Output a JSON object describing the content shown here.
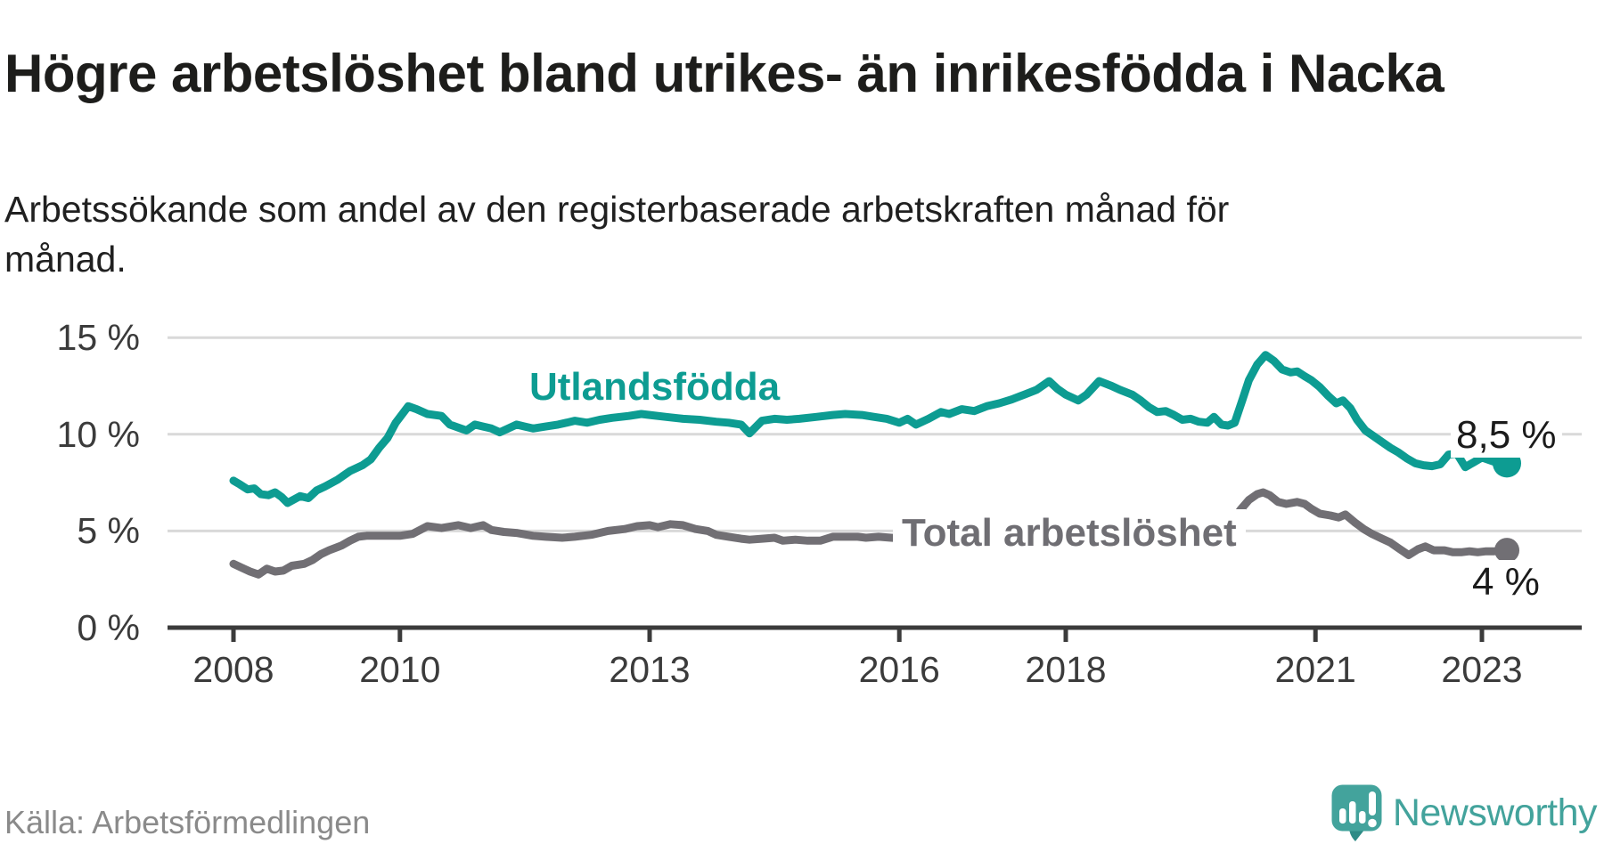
{
  "header": {
    "title": "Högre arbetslöshet bland utrikes- än inrikesfödda i Nacka",
    "subtitle": "Arbetssökande som andel av den registerbaserade arbetskraften månad för månad."
  },
  "footer": {
    "source": "Källa: Arbetsförmedlingen",
    "brand": "Newsworthy",
    "logo_icon": "newsworthy-speech-bubble-bar-chart-icon"
  },
  "colors": {
    "foreign_born_line": "#0d9c92",
    "total_line": "#716f74",
    "gridline": "#d9d9d9",
    "axis": "#3b3b3b",
    "title_text": "#1d1d1b",
    "source_text": "#8a8a8a",
    "brand_teal": "#43a39c"
  },
  "chart_data": {
    "type": "line",
    "title": "Högre arbetslöshet bland utrikes- än inrikesfödda i Nacka",
    "subtitle": "Arbetssökande som andel av den registerbaserade arbetskraften månad för månad.",
    "grid": "horizontal",
    "legend": "inline-labels",
    "xlabel": "",
    "ylabel": "",
    "x_axis": {
      "range": [
        2007.2,
        2024.2
      ],
      "ticks": [
        {
          "value": 2008,
          "label": "2008"
        },
        {
          "value": 2010,
          "label": "2010"
        },
        {
          "value": 2013,
          "label": "2013"
        },
        {
          "value": 2016,
          "label": "2016"
        },
        {
          "value": 2018,
          "label": "2018"
        },
        {
          "value": 2021,
          "label": "2021"
        },
        {
          "value": 2023,
          "label": "2023"
        }
      ]
    },
    "y_axis": {
      "unit": "%",
      "range": [
        0,
        16.5
      ],
      "ticks": [
        {
          "value": 15,
          "label": "15 %"
        },
        {
          "value": 10,
          "label": "10 %"
        },
        {
          "value": 5,
          "label": "5 %"
        },
        {
          "value": 0,
          "label": "0 %"
        }
      ]
    },
    "series": [
      {
        "name": "Utlandsfödda",
        "color": "#0d9c92",
        "end_label": "8,5 %",
        "end_value": 8.5,
        "dot_radius": 16,
        "points": [
          [
            2008.0,
            7.6
          ],
          [
            2008.08,
            7.4
          ],
          [
            2008.17,
            7.15
          ],
          [
            2008.25,
            7.2
          ],
          [
            2008.33,
            6.9
          ],
          [
            2008.42,
            6.85
          ],
          [
            2008.5,
            7.0
          ],
          [
            2008.58,
            6.75
          ],
          [
            2008.65,
            6.45
          ],
          [
            2008.8,
            6.8
          ],
          [
            2008.9,
            6.7
          ],
          [
            2009.0,
            7.1
          ],
          [
            2009.1,
            7.3
          ],
          [
            2009.25,
            7.65
          ],
          [
            2009.4,
            8.1
          ],
          [
            2009.55,
            8.4
          ],
          [
            2009.65,
            8.7
          ],
          [
            2009.75,
            9.3
          ],
          [
            2009.85,
            9.8
          ],
          [
            2009.95,
            10.6
          ],
          [
            2010.1,
            11.45
          ],
          [
            2010.2,
            11.3
          ],
          [
            2010.33,
            11.05
          ],
          [
            2010.5,
            10.95
          ],
          [
            2010.6,
            10.5
          ],
          [
            2010.7,
            10.35
          ],
          [
            2010.8,
            10.2
          ],
          [
            2010.9,
            10.5
          ],
          [
            2011.0,
            10.4
          ],
          [
            2011.1,
            10.3
          ],
          [
            2011.2,
            10.1
          ],
          [
            2011.3,
            10.3
          ],
          [
            2011.4,
            10.5
          ],
          [
            2011.5,
            10.4
          ],
          [
            2011.6,
            10.3
          ],
          [
            2011.75,
            10.4
          ],
          [
            2011.9,
            10.5
          ],
          [
            2012.0,
            10.6
          ],
          [
            2012.1,
            10.7
          ],
          [
            2012.25,
            10.6
          ],
          [
            2012.4,
            10.75
          ],
          [
            2012.55,
            10.85
          ],
          [
            2012.75,
            10.95
          ],
          [
            2012.9,
            11.05
          ],
          [
            2013.0,
            11.0
          ],
          [
            2013.2,
            10.9
          ],
          [
            2013.4,
            10.8
          ],
          [
            2013.6,
            10.75
          ],
          [
            2013.8,
            10.65
          ],
          [
            2013.95,
            10.6
          ],
          [
            2014.1,
            10.5
          ],
          [
            2014.2,
            10.05
          ],
          [
            2014.35,
            10.7
          ],
          [
            2014.5,
            10.8
          ],
          [
            2014.65,
            10.75
          ],
          [
            2014.8,
            10.8
          ],
          [
            2015.0,
            10.9
          ],
          [
            2015.2,
            11.0
          ],
          [
            2015.35,
            11.05
          ],
          [
            2015.55,
            11.0
          ],
          [
            2015.7,
            10.9
          ],
          [
            2015.85,
            10.8
          ],
          [
            2016.0,
            10.6
          ],
          [
            2016.1,
            10.8
          ],
          [
            2016.2,
            10.5
          ],
          [
            2016.35,
            10.8
          ],
          [
            2016.5,
            11.15
          ],
          [
            2016.6,
            11.05
          ],
          [
            2016.75,
            11.3
          ],
          [
            2016.9,
            11.2
          ],
          [
            2017.05,
            11.45
          ],
          [
            2017.2,
            11.6
          ],
          [
            2017.35,
            11.8
          ],
          [
            2017.5,
            12.05
          ],
          [
            2017.65,
            12.3
          ],
          [
            2017.8,
            12.75
          ],
          [
            2017.9,
            12.35
          ],
          [
            2018.0,
            12.05
          ],
          [
            2018.15,
            11.75
          ],
          [
            2018.25,
            12.05
          ],
          [
            2018.4,
            12.75
          ],
          [
            2018.55,
            12.5
          ],
          [
            2018.65,
            12.3
          ],
          [
            2018.8,
            12.05
          ],
          [
            2018.9,
            11.75
          ],
          [
            2019.0,
            11.4
          ],
          [
            2019.1,
            11.15
          ],
          [
            2019.2,
            11.2
          ],
          [
            2019.3,
            11.0
          ],
          [
            2019.4,
            10.75
          ],
          [
            2019.5,
            10.8
          ],
          [
            2019.6,
            10.65
          ],
          [
            2019.7,
            10.6
          ],
          [
            2019.78,
            10.9
          ],
          [
            2019.87,
            10.5
          ],
          [
            2019.95,
            10.45
          ],
          [
            2020.03,
            10.6
          ],
          [
            2020.12,
            11.75
          ],
          [
            2020.2,
            12.8
          ],
          [
            2020.3,
            13.6
          ],
          [
            2020.4,
            14.1
          ],
          [
            2020.5,
            13.8
          ],
          [
            2020.6,
            13.35
          ],
          [
            2020.7,
            13.2
          ],
          [
            2020.78,
            13.25
          ],
          [
            2020.87,
            13.0
          ],
          [
            2020.95,
            12.8
          ],
          [
            2021.05,
            12.45
          ],
          [
            2021.15,
            12.0
          ],
          [
            2021.25,
            11.6
          ],
          [
            2021.33,
            11.75
          ],
          [
            2021.42,
            11.35
          ],
          [
            2021.5,
            10.75
          ],
          [
            2021.6,
            10.2
          ],
          [
            2021.7,
            9.9
          ],
          [
            2021.8,
            9.6
          ],
          [
            2021.9,
            9.3
          ],
          [
            2022.0,
            9.05
          ],
          [
            2022.1,
            8.75
          ],
          [
            2022.2,
            8.5
          ],
          [
            2022.3,
            8.4
          ],
          [
            2022.4,
            8.35
          ],
          [
            2022.5,
            8.45
          ],
          [
            2022.6,
            8.95
          ],
          [
            2022.7,
            9.0
          ],
          [
            2022.8,
            8.3
          ],
          [
            2022.9,
            8.55
          ],
          [
            2023.0,
            8.8
          ],
          [
            2023.1,
            8.65
          ],
          [
            2023.2,
            8.5
          ],
          [
            2023.3,
            8.5
          ]
        ]
      },
      {
        "name": "Total arbetslöshet",
        "color": "#716f74",
        "end_label": "4 %",
        "end_value": 4.0,
        "dot_radius": 14,
        "points": [
          [
            2008.0,
            3.3
          ],
          [
            2008.1,
            3.1
          ],
          [
            2008.2,
            2.9
          ],
          [
            2008.3,
            2.75
          ],
          [
            2008.4,
            3.05
          ],
          [
            2008.5,
            2.9
          ],
          [
            2008.6,
            2.95
          ],
          [
            2008.7,
            3.2
          ],
          [
            2008.85,
            3.3
          ],
          [
            2008.95,
            3.5
          ],
          [
            2009.05,
            3.8
          ],
          [
            2009.15,
            4.0
          ],
          [
            2009.3,
            4.25
          ],
          [
            2009.4,
            4.5
          ],
          [
            2009.5,
            4.7
          ],
          [
            2009.6,
            4.75
          ],
          [
            2009.8,
            4.75
          ],
          [
            2010.0,
            4.75
          ],
          [
            2010.15,
            4.85
          ],
          [
            2010.33,
            5.25
          ],
          [
            2010.5,
            5.15
          ],
          [
            2010.7,
            5.3
          ],
          [
            2010.85,
            5.15
          ],
          [
            2011.0,
            5.3
          ],
          [
            2011.1,
            5.05
          ],
          [
            2011.25,
            4.95
          ],
          [
            2011.4,
            4.9
          ],
          [
            2011.6,
            4.75
          ],
          [
            2011.75,
            4.7
          ],
          [
            2011.95,
            4.65
          ],
          [
            2012.1,
            4.7
          ],
          [
            2012.3,
            4.8
          ],
          [
            2012.5,
            5.0
          ],
          [
            2012.7,
            5.1
          ],
          [
            2012.85,
            5.25
          ],
          [
            2013.0,
            5.3
          ],
          [
            2013.1,
            5.2
          ],
          [
            2013.25,
            5.35
          ],
          [
            2013.4,
            5.3
          ],
          [
            2013.55,
            5.1
          ],
          [
            2013.7,
            5.0
          ],
          [
            2013.8,
            4.8
          ],
          [
            2013.95,
            4.7
          ],
          [
            2014.1,
            4.6
          ],
          [
            2014.2,
            4.55
          ],
          [
            2014.35,
            4.6
          ],
          [
            2014.5,
            4.65
          ],
          [
            2014.6,
            4.5
          ],
          [
            2014.75,
            4.55
          ],
          [
            2014.9,
            4.5
          ],
          [
            2015.05,
            4.5
          ],
          [
            2015.2,
            4.7
          ],
          [
            2015.35,
            4.7
          ],
          [
            2015.5,
            4.7
          ],
          [
            2015.6,
            4.65
          ],
          [
            2015.75,
            4.7
          ],
          [
            2015.9,
            4.65
          ],
          [
            2016.1,
            4.6
          ],
          [
            2016.3,
            4.55
          ],
          [
            2016.5,
            4.5
          ],
          [
            2016.75,
            4.45
          ],
          [
            2017.0,
            4.4
          ],
          [
            2017.25,
            4.35
          ],
          [
            2017.5,
            4.3
          ],
          [
            2017.75,
            4.25
          ],
          [
            2018.0,
            4.2
          ],
          [
            2018.25,
            4.2
          ],
          [
            2018.5,
            4.2
          ],
          [
            2018.75,
            4.25
          ],
          [
            2019.0,
            4.3
          ],
          [
            2019.25,
            4.3
          ],
          [
            2019.5,
            4.35
          ],
          [
            2019.7,
            4.4
          ],
          [
            2019.85,
            4.6
          ],
          [
            2020.0,
            5.5
          ],
          [
            2020.1,
            6.1
          ],
          [
            2020.2,
            6.6
          ],
          [
            2020.3,
            6.9
          ],
          [
            2020.37,
            7.0
          ],
          [
            2020.45,
            6.85
          ],
          [
            2020.55,
            6.5
          ],
          [
            2020.65,
            6.4
          ],
          [
            2020.78,
            6.5
          ],
          [
            2020.87,
            6.4
          ],
          [
            2020.95,
            6.15
          ],
          [
            2021.05,
            5.9
          ],
          [
            2021.18,
            5.8
          ],
          [
            2021.28,
            5.7
          ],
          [
            2021.36,
            5.85
          ],
          [
            2021.47,
            5.45
          ],
          [
            2021.58,
            5.1
          ],
          [
            2021.68,
            4.85
          ],
          [
            2021.8,
            4.6
          ],
          [
            2021.9,
            4.4
          ],
          [
            2022.0,
            4.1
          ],
          [
            2022.12,
            3.75
          ],
          [
            2022.23,
            4.05
          ],
          [
            2022.32,
            4.2
          ],
          [
            2022.42,
            4.0
          ],
          [
            2022.55,
            4.0
          ],
          [
            2022.65,
            3.9
          ],
          [
            2022.75,
            3.9
          ],
          [
            2022.85,
            3.95
          ],
          [
            2022.95,
            3.9
          ],
          [
            2023.05,
            3.95
          ],
          [
            2023.15,
            3.95
          ],
          [
            2023.3,
            4.0
          ]
        ]
      }
    ]
  }
}
